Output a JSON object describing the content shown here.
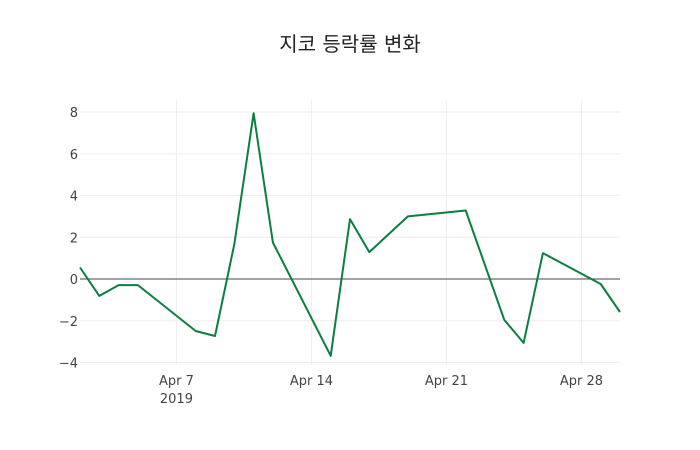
{
  "chart_data": {
    "type": "line",
    "title": "지코 등락률 변화",
    "xlabel": "",
    "ylabel": "",
    "x": [
      "2019-04-02",
      "2019-04-03",
      "2019-04-04",
      "2019-04-05",
      "2019-04-08",
      "2019-04-09",
      "2019-04-10",
      "2019-04-11",
      "2019-04-12",
      "2019-04-15",
      "2019-04-16",
      "2019-04-17",
      "2019-04-19",
      "2019-04-22",
      "2019-04-24",
      "2019-04-25",
      "2019-04-26",
      "2019-04-29",
      "2019-04-30"
    ],
    "series": [
      {
        "name": "등락률",
        "color": "#0a7f3f",
        "values": [
          0.55,
          -0.81,
          -0.29,
          -0.29,
          -2.49,
          -2.73,
          1.66,
          7.94,
          1.75,
          -3.68,
          2.87,
          1.29,
          3.0,
          3.28,
          -1.96,
          -3.06,
          1.24,
          -0.24,
          -1.58
        ]
      }
    ],
    "xlim": [
      "2019-04-02",
      "2019-04-30"
    ],
    "ylim": [
      -4.3,
      8.6
    ],
    "x_ticks": [
      {
        "date": "2019-04-07",
        "label": "Apr 7",
        "sublabel": "2019"
      },
      {
        "date": "2019-04-14",
        "label": "Apr 14",
        "sublabel": ""
      },
      {
        "date": "2019-04-21",
        "label": "Apr 21",
        "sublabel": ""
      },
      {
        "date": "2019-04-28",
        "label": "Apr 28",
        "sublabel": ""
      }
    ],
    "y_ticks": [
      8,
      6,
      4,
      2,
      0,
      -2,
      -4
    ],
    "y_tick_labels": [
      "8",
      "6",
      "4",
      "2",
      "0",
      "−2",
      "−4"
    ],
    "grid": true,
    "zero_line": true,
    "legend": "none"
  }
}
